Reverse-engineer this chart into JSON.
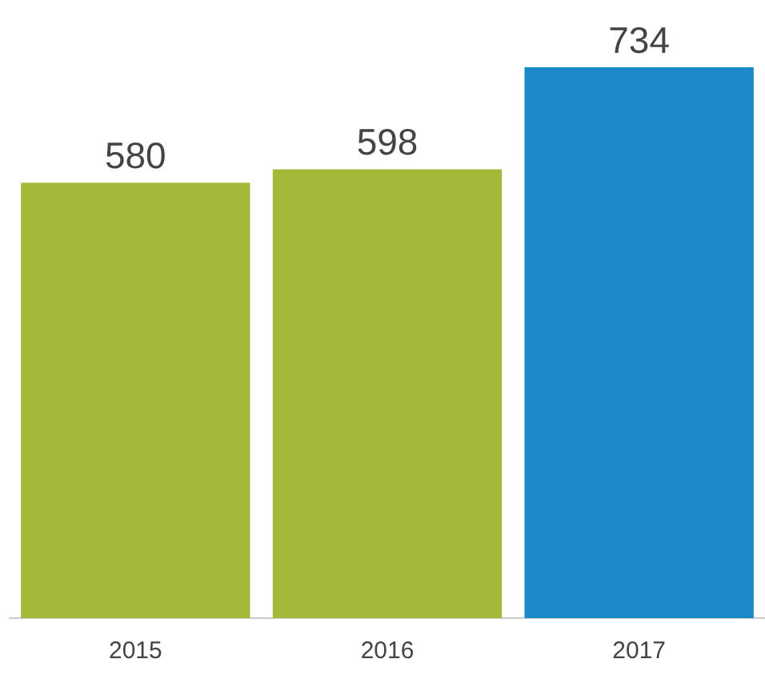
{
  "chart_data": {
    "type": "bar",
    "categories": [
      "2015",
      "2016",
      "2017"
    ],
    "values": [
      580,
      598,
      734
    ],
    "colors": [
      "#a5b83a",
      "#a5b83a",
      "#1a8ac6"
    ],
    "data_labels": true,
    "grid": false,
    "legend": false,
    "tick_labels": "x"
  }
}
